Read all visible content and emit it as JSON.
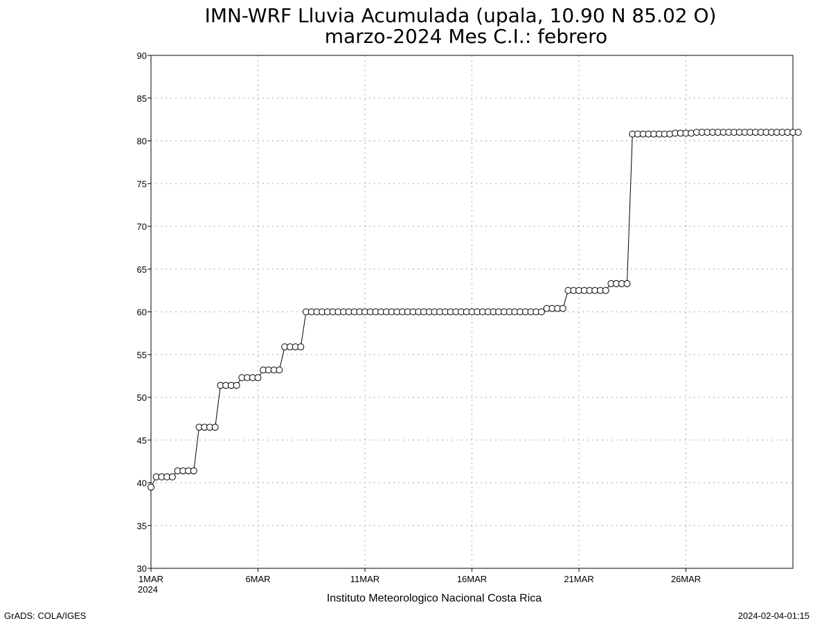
{
  "page": {
    "footer_left": "GrADS: COLA/IGES",
    "footer_right": "2024-02-04-01:15"
  },
  "chart_data": {
    "type": "line",
    "title": "IMN-WRF  Lluvia Acumulada (upala, 10.90  N 85.02  O)",
    "subtitle": "marzo-2024 Mes C.I.: febrero",
    "xlabel": "Instituto Meteorologico Nacional Costa Rica",
    "ylabel": "",
    "x_tick_labels": [
      "1MAR",
      "6MAR",
      "11MAR",
      "16MAR",
      "21MAR",
      "26MAR"
    ],
    "x_tick_days": [
      1,
      6,
      11,
      16,
      21,
      26
    ],
    "x_year_label": "2024",
    "xlim": [
      "2024-03-01",
      "2024-03-31"
    ],
    "ylim": [
      30,
      90
    ],
    "y_ticks": [
      30,
      35,
      40,
      45,
      50,
      55,
      60,
      65,
      70,
      75,
      80,
      85,
      90
    ],
    "grid": true,
    "marker": "open-circle",
    "series": [
      {
        "values": [
          39.5,
          40.7,
          40.7,
          40.7,
          40.7,
          41.4,
          41.4,
          41.4,
          41.4,
          46.5,
          46.5,
          46.5,
          46.5,
          51.4,
          51.4,
          51.4,
          51.4,
          52.3,
          52.3,
          52.3,
          52.3,
          53.2,
          53.2,
          53.2,
          53.2,
          55.9,
          55.9,
          55.9,
          55.9,
          60.0,
          60.0,
          60.0,
          60.0,
          60.0,
          60.0,
          60.0,
          60.0,
          60.0,
          60.0,
          60.0,
          60.0,
          60.0,
          60.0,
          60.0,
          60.0,
          60.0,
          60.0,
          60.0,
          60.0,
          60.0,
          60.0,
          60.0,
          60.0,
          60.0,
          60.0,
          60.0,
          60.0,
          60.0,
          60.0,
          60.0,
          60.0,
          60.0,
          60.0,
          60.0,
          60.0,
          60.0,
          60.0,
          60.0,
          60.0,
          60.0,
          60.0,
          60.0,
          60.0,
          60.0,
          60.4,
          60.4,
          60.4,
          60.4,
          62.5,
          62.5,
          62.5,
          62.5,
          62.5,
          62.5,
          62.5,
          62.5,
          63.3,
          63.3,
          63.3,
          63.3,
          80.8,
          80.8,
          80.8,
          80.8,
          80.8,
          80.8,
          80.8,
          80.8,
          80.9,
          80.9,
          80.9,
          80.9,
          81.0,
          81.0,
          81.0,
          81.0,
          81.0,
          81.0,
          81.0,
          81.0,
          81.0,
          81.0,
          81.0,
          81.0,
          81.0,
          81.0,
          81.0,
          81.0,
          81.0,
          81.0,
          81.0,
          81.0
        ]
      }
    ]
  }
}
